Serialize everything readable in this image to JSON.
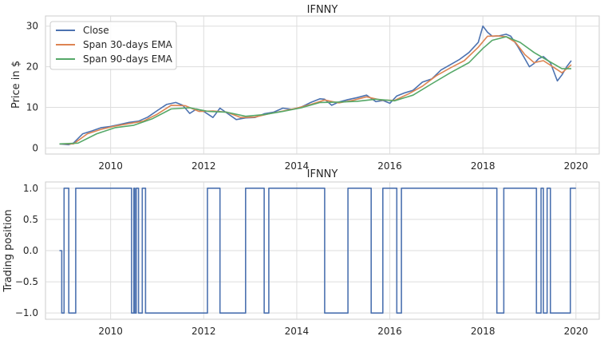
{
  "chart_data": [
    {
      "type": "line",
      "title": "IFNNY",
      "xlabel": "",
      "ylabel": "Price in $",
      "xlim": [
        2008.6,
        2020.5
      ],
      "ylim": [
        -1.5,
        32.5
      ],
      "xticks": [
        2010,
        2012,
        2014,
        2016,
        2018,
        2020
      ],
      "xtick_labels": [
        "2010",
        "2012",
        "2014",
        "2016",
        "2018",
        "2020"
      ],
      "yticks": [
        0,
        10,
        20,
        30
      ],
      "ytick_labels": [
        "0",
        "10",
        "20",
        "30"
      ],
      "grid": true,
      "legend_position": "top-left",
      "legend": [
        "Close",
        "Span 30-days EMA",
        "Span 90-days EMA"
      ],
      "series": [
        {
          "name": "Close",
          "color": "#4c72b0",
          "x": [
            2008.9,
            2009.1,
            2009.2,
            2009.4,
            2009.6,
            2009.8,
            2010.0,
            2010.2,
            2010.4,
            2010.6,
            2010.8,
            2011.0,
            2011.2,
            2011.4,
            2011.55,
            2011.7,
            2011.85,
            2012.0,
            2012.2,
            2012.35,
            2012.5,
            2012.7,
            2012.9,
            2013.1,
            2013.3,
            2013.5,
            2013.7,
            2013.9,
            2014.1,
            2014.3,
            2014.5,
            2014.6,
            2014.75,
            2014.9,
            2015.1,
            2015.3,
            2015.5,
            2015.7,
            2015.85,
            2016.0,
            2016.15,
            2016.3,
            2016.5,
            2016.7,
            2016.9,
            2017.1,
            2017.3,
            2017.5,
            2017.7,
            2017.9,
            2018.0,
            2018.1,
            2018.2,
            2018.35,
            2018.5,
            2018.6,
            2018.75,
            2018.9,
            2019.0,
            2019.1,
            2019.2,
            2019.3,
            2019.45,
            2019.6,
            2019.7,
            2019.8,
            2019.9
          ],
          "y": [
            1.0,
            0.8,
            1.2,
            3.5,
            4.2,
            5.0,
            5.3,
            5.8,
            6.3,
            6.6,
            7.6,
            9.2,
            10.7,
            11.2,
            10.5,
            8.5,
            9.6,
            9.0,
            7.5,
            9.8,
            8.6,
            7.0,
            7.4,
            7.5,
            8.4,
            8.8,
            9.8,
            9.5,
            10.1,
            11.2,
            12.1,
            12.0,
            10.5,
            11.3,
            11.9,
            12.4,
            13.0,
            11.4,
            11.7,
            11.0,
            12.8,
            13.5,
            14.2,
            16.2,
            17.0,
            19.2,
            20.5,
            21.8,
            23.5,
            26.0,
            30.0,
            28.5,
            27.5,
            27.6,
            28.0,
            27.5,
            25.0,
            22.0,
            20.0,
            20.8,
            22.0,
            22.5,
            21.0,
            16.5,
            18.0,
            20.0,
            21.5
          ]
        },
        {
          "name": "Span 30-days EMA",
          "color": "#dd8452",
          "x": [
            2008.9,
            2009.2,
            2009.5,
            2009.8,
            2010.1,
            2010.4,
            2010.7,
            2011.0,
            2011.3,
            2011.6,
            2011.9,
            2012.2,
            2012.5,
            2012.8,
            2013.1,
            2013.4,
            2013.7,
            2014.0,
            2014.3,
            2014.6,
            2014.9,
            2015.2,
            2015.5,
            2015.8,
            2016.1,
            2016.4,
            2016.7,
            2017.0,
            2017.3,
            2017.6,
            2017.9,
            2018.1,
            2018.3,
            2018.5,
            2018.7,
            2018.9,
            2019.1,
            2019.3,
            2019.5,
            2019.7,
            2019.9
          ],
          "y": [
            1.0,
            1.0,
            3.5,
            4.6,
            5.4,
            6.0,
            6.6,
            8.3,
            10.5,
            10.4,
            9.0,
            9.1,
            8.8,
            7.5,
            7.6,
            8.4,
            9.1,
            9.8,
            10.7,
            11.8,
            11.1,
            11.7,
            12.6,
            11.8,
            11.7,
            13.3,
            15.2,
            17.8,
            19.7,
            21.5,
            24.8,
            27.5,
            27.6,
            27.4,
            26.0,
            23.0,
            21.0,
            21.5,
            20.0,
            18.5,
            20.5
          ]
        },
        {
          "name": "Span 90-days EMA",
          "color": "#55a868",
          "x": [
            2008.9,
            2009.3,
            2009.7,
            2010.1,
            2010.5,
            2010.9,
            2011.3,
            2011.7,
            2012.1,
            2012.5,
            2012.9,
            2013.3,
            2013.7,
            2014.1,
            2014.5,
            2014.9,
            2015.3,
            2015.7,
            2016.1,
            2016.5,
            2016.9,
            2017.3,
            2017.7,
            2018.0,
            2018.2,
            2018.5,
            2018.8,
            2019.1,
            2019.4,
            2019.7,
            2019.9
          ],
          "y": [
            1.0,
            1.2,
            3.5,
            5.0,
            5.6,
            7.2,
            9.6,
            9.9,
            9.0,
            8.8,
            7.8,
            8.2,
            9.0,
            9.9,
            11.2,
            11.3,
            11.5,
            12.0,
            11.6,
            13.0,
            15.8,
            18.5,
            21.0,
            24.5,
            26.5,
            27.4,
            26.0,
            23.5,
            21.5,
            19.5,
            19.5
          ]
        }
      ]
    },
    {
      "type": "line",
      "title": "IFNNY",
      "xlabel": "",
      "ylabel": "Trading position",
      "xlim": [
        2008.6,
        2020.5
      ],
      "ylim": [
        -1.1,
        1.1
      ],
      "xticks": [
        2010,
        2012,
        2014,
        2016,
        2018,
        2020
      ],
      "xtick_labels": [
        "2010",
        "2012",
        "2014",
        "2016",
        "2018",
        "2020"
      ],
      "yticks": [
        1.0,
        0.5,
        0.0,
        -0.5,
        -1.0
      ],
      "ytick_labels": [
        "1.0",
        "0.5",
        "0.0",
        "−0.5",
        "−1.0"
      ],
      "grid": true,
      "step": true,
      "series": [
        {
          "name": "Trading position",
          "color": "#4c72b0",
          "x": [
            2008.9,
            2008.95,
            2009.0,
            2009.1,
            2009.25,
            2010.45,
            2010.5,
            2010.52,
            2010.55,
            2010.6,
            2010.68,
            2010.75,
            2011.55,
            2012.08,
            2012.35,
            2012.9,
            2013.3,
            2013.4,
            2014.6,
            2015.1,
            2015.6,
            2015.85,
            2016.15,
            2016.25,
            2018.3,
            2018.45,
            2019.15,
            2019.25,
            2019.3,
            2019.38,
            2019.45,
            2019.88,
            2020.0
          ],
          "y": [
            0,
            -1,
            1,
            -1,
            1,
            -1,
            1,
            -1,
            1,
            -1,
            1,
            -1,
            -1,
            1,
            -1,
            1,
            -1,
            1,
            -1,
            1,
            -1,
            1,
            -1,
            1,
            -1,
            1,
            -1,
            1,
            -1,
            1,
            -1,
            1,
            1
          ]
        }
      ]
    }
  ]
}
